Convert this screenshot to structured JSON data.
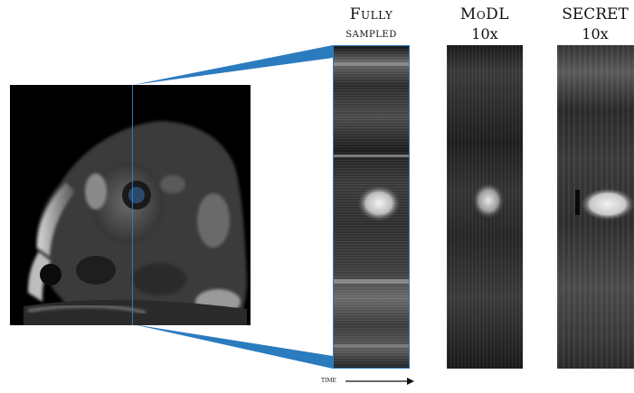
{
  "labels": {
    "fully_sampled": {
      "line1": "Fully",
      "line2": "sampled"
    },
    "modl": {
      "line1": "MoDL",
      "line2": "10x"
    },
    "secret": {
      "line1": "SECRET",
      "line2": "10x"
    }
  },
  "time_axis": {
    "label": "time"
  },
  "colors": {
    "accent_blue": "#2b7bbf",
    "background": "#ffffff",
    "panel_bg": "#000000"
  }
}
